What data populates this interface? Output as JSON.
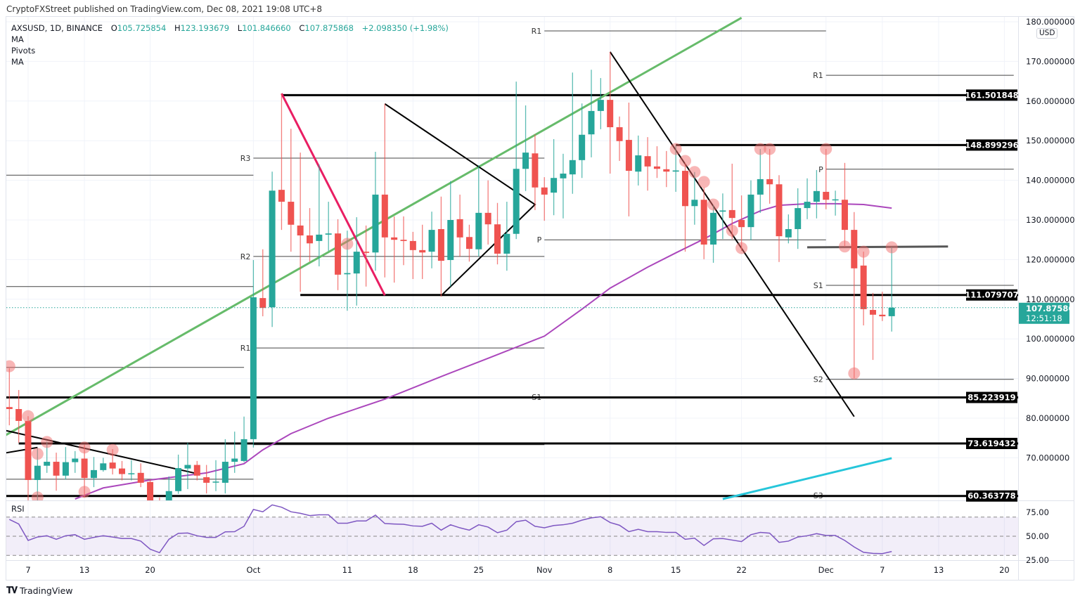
{
  "header": {
    "published": "CryptoFXStreet published on TradingView.com, Dec 08, 2021 19:08 UTC+8"
  },
  "legend": {
    "symbol": "AXSUSD, 1D, BINANCE",
    "open_label": "O",
    "open": "105.725854",
    "high_label": "H",
    "high": "123.193679",
    "low_label": "L",
    "low": "101.846660",
    "close_label": "C",
    "close": "107.875868",
    "change": "+2.098350 (+1.98%)",
    "indicators": [
      "MA",
      "Pivots",
      "MA"
    ]
  },
  "price_axis": {
    "currency": "USD",
    "ticks": [
      "180.000000",
      "170.000000",
      "160.000000",
      "150.000000",
      "140.000000",
      "130.000000",
      "120.000000",
      "110.000000",
      "100.000000",
      "90.000000",
      "80.000000",
      "70.000000"
    ]
  },
  "current_price": {
    "price": "107.875868",
    "countdown": "12:51:18"
  },
  "rsi": {
    "label": "RSI",
    "ticks": [
      "75.00",
      "50.00",
      "25.00"
    ]
  },
  "footer": {
    "brand": "TradingView",
    "logo": "17"
  },
  "colors": {
    "up": "#26a69a",
    "down": "#ef5350",
    "ma50": "#ab47bc",
    "ma200": "#26c6da",
    "trend_up": "#66bb6a",
    "trend_down": "#e91e63",
    "rsi": "#7e57c2"
  },
  "chart_data": {
    "type": "candlestick",
    "title": "",
    "ylim": [
      60,
      180
    ],
    "grid": true,
    "x_ticks": [
      {
        "label": "7",
        "date": "2021-09-07"
      },
      {
        "label": "13",
        "date": "2021-09-13"
      },
      {
        "label": "20",
        "date": "2021-09-20"
      },
      {
        "label": "Oct",
        "date": "2021-10-01"
      },
      {
        "label": "11",
        "date": "2021-10-11"
      },
      {
        "label": "18",
        "date": "2021-10-18"
      },
      {
        "label": "25",
        "date": "2021-10-25"
      },
      {
        "label": "Nov",
        "date": "2021-11-01"
      },
      {
        "label": "8",
        "date": "2021-11-08"
      },
      {
        "label": "15",
        "date": "2021-11-15"
      },
      {
        "label": "22",
        "date": "2021-11-22"
      },
      {
        "label": "Dec",
        "date": "2021-12-01"
      },
      {
        "label": "7",
        "date": "2021-12-07"
      },
      {
        "label": "13",
        "date": "2021-12-13"
      },
      {
        "label": "20",
        "date": "2021-12-20"
      }
    ],
    "candles_columns": [
      "date",
      "open",
      "high",
      "low",
      "close"
    ],
    "candles": [
      [
        "2021-09-05",
        82.8,
        92.6,
        78.2,
        82.3
      ],
      [
        "2021-09-06",
        82.3,
        87.1,
        73.8,
        79.3
      ],
      [
        "2021-09-07",
        79.3,
        80.5,
        58,
        64.4
      ],
      [
        "2021-09-08",
        64.4,
        72.4,
        59,
        68.0
      ],
      [
        "2021-09-09",
        68.0,
        74.1,
        66.2,
        69.0
      ],
      [
        "2021-09-10",
        69.0,
        71.3,
        61.7,
        65.5
      ],
      [
        "2021-09-11",
        65.5,
        72.7,
        64.5,
        68.9
      ],
      [
        "2021-09-12",
        68.9,
        71.7,
        66.2,
        69.8
      ],
      [
        "2021-09-13",
        69.8,
        73.3,
        60,
        64.9
      ],
      [
        "2021-09-14",
        64.9,
        70.2,
        62.6,
        66.9
      ],
      [
        "2021-09-15",
        66.9,
        70.0,
        66.5,
        68.6
      ],
      [
        "2021-09-16",
        68.8,
        72.2,
        65.8,
        67.3
      ],
      [
        "2021-09-17",
        67.3,
        69.2,
        64.3,
        65.9
      ],
      [
        "2021-09-18",
        65.9,
        69.4,
        64.3,
        66.1
      ],
      [
        "2021-09-19",
        66.2,
        68.6,
        62.6,
        63.7
      ],
      [
        "2021-09-20",
        63.9,
        64.5,
        56,
        58.0
      ],
      [
        "2021-09-21",
        58,
        60,
        52,
        55
      ],
      [
        "2021-09-22",
        56,
        65.3,
        54,
        61.6
      ],
      [
        "2021-09-23",
        61.6,
        70.8,
        60.9,
        67.4
      ],
      [
        "2021-09-24",
        67.3,
        73.8,
        62.1,
        68.2
      ],
      [
        "2021-09-25",
        68.2,
        69.2,
        64.3,
        65.5
      ],
      [
        "2021-09-26",
        65.1,
        68.2,
        61,
        63.7
      ],
      [
        "2021-09-27",
        63.8,
        69.4,
        61.6,
        64.0
      ],
      [
        "2021-09-28",
        63.7,
        74.7,
        61.0,
        69.0
      ],
      [
        "2021-09-29",
        69.0,
        76.6,
        66.2,
        69.8
      ],
      [
        "2021-09-30",
        69.2,
        80.4,
        68.9,
        74.7
      ],
      [
        "2021-10-01",
        74.7,
        119.9,
        72.6,
        110.5
      ],
      [
        "2021-10-02",
        110.3,
        122.6,
        105.7,
        107.8
      ],
      [
        "2021-10-03",
        108.0,
        142.2,
        103.0,
        137.4
      ],
      [
        "2021-10-04",
        137.6,
        161.9,
        127.5,
        134.6
      ],
      [
        "2021-10-05",
        134.6,
        153.0,
        122.0,
        128.8
      ],
      [
        "2021-10-06",
        128.6,
        147.0,
        111.9,
        126.1
      ],
      [
        "2021-10-07",
        126.1,
        133.0,
        119.5,
        124.1
      ],
      [
        "2021-10-08",
        124.7,
        144.0,
        118.3,
        126.3
      ],
      [
        "2021-10-09",
        126.3,
        134.6,
        122.2,
        126.6
      ],
      [
        "2021-10-10",
        126.6,
        130.2,
        112.3,
        116.2
      ],
      [
        "2021-10-11",
        116.3,
        127.3,
        107.1,
        116.6
      ],
      [
        "2021-10-12",
        116.5,
        130.7,
        108.4,
        122.0
      ],
      [
        "2021-10-13",
        122.0,
        128.6,
        113.2,
        121.7
      ],
      [
        "2021-10-14",
        121.8,
        147.2,
        117.2,
        136.4
      ],
      [
        "2021-10-15",
        136.4,
        159.3,
        115.5,
        125.6
      ],
      [
        "2021-10-16",
        125.6,
        130.9,
        114.2,
        125.0
      ],
      [
        "2021-10-17",
        125.0,
        130.9,
        118.6,
        124.7
      ],
      [
        "2021-10-18",
        124.7,
        127.0,
        115.1,
        122.4
      ],
      [
        "2021-10-19",
        122.4,
        128.8,
        115.1,
        121.8
      ],
      [
        "2021-10-20",
        122.0,
        132.1,
        117.8,
        127.5
      ],
      [
        "2021-10-21",
        127.7,
        135.9,
        110.7,
        119.7
      ],
      [
        "2021-10-22",
        119.9,
        139.8,
        113.2,
        130.0
      ],
      [
        "2021-10-23",
        130.2,
        136.4,
        120.8,
        125.6
      ],
      [
        "2021-10-24",
        125.7,
        128.8,
        119.5,
        122.7
      ],
      [
        "2021-10-25",
        122.6,
        143.8,
        120.8,
        131.8
      ],
      [
        "2021-10-26",
        131.8,
        140.0,
        123.8,
        128.9
      ],
      [
        "2021-10-27",
        128.9,
        134.3,
        118.8,
        121.5
      ],
      [
        "2021-10-28",
        121.5,
        134.6,
        117.2,
        126.5
      ],
      [
        "2021-10-29",
        126.5,
        164.9,
        125.2,
        142.9
      ],
      [
        "2021-10-30",
        142.9,
        158.9,
        137.3,
        147.0
      ],
      [
        "2021-10-31",
        146.8,
        151.6,
        132.5,
        138.2
      ],
      [
        "2021-11-01",
        138.2,
        140.8,
        129.8,
        136.4
      ],
      [
        "2021-11-02",
        136.9,
        150.4,
        131.2,
        140.6
      ],
      [
        "2021-11-03",
        140.5,
        146.7,
        130.4,
        141.7
      ],
      [
        "2021-11-04",
        141.5,
        167.2,
        136.6,
        145.1
      ],
      [
        "2021-11-05",
        145.1,
        159.4,
        140.6,
        151.5
      ],
      [
        "2021-11-06",
        151.6,
        167.9,
        145.8,
        157.5
      ],
      [
        "2021-11-07",
        157.5,
        165.8,
        152.9,
        160.3
      ],
      [
        "2021-11-08",
        160.3,
        172.4,
        141.7,
        153.4
      ],
      [
        "2021-11-09",
        153.4,
        156.1,
        144.9,
        149.9
      ],
      [
        "2021-11-10",
        150.2,
        159.6,
        130.9,
        142.4
      ],
      [
        "2021-11-11",
        142.2,
        151.3,
        138.7,
        146.3
      ],
      [
        "2021-11-12",
        146.1,
        150.9,
        137.4,
        143.5
      ],
      [
        "2021-11-13",
        143.5,
        148.6,
        140.6,
        142.9
      ],
      [
        "2021-11-14",
        142.8,
        147.4,
        138.3,
        142.2
      ],
      [
        "2021-11-15",
        142.2,
        148.8,
        137.1,
        142.5
      ],
      [
        "2021-11-16",
        142.4,
        144.4,
        122.0,
        133.5
      ],
      [
        "2021-11-17",
        133.5,
        142.1,
        128.8,
        135.1
      ],
      [
        "2021-11-18",
        135.1,
        138.2,
        120.1,
        123.8
      ],
      [
        "2021-11-19",
        123.8,
        133.7,
        119.2,
        131.8
      ],
      [
        "2021-11-20",
        132.1,
        136.7,
        125.2,
        132.4
      ],
      [
        "2021-11-21",
        132.5,
        144.2,
        125.2,
        130.5
      ],
      [
        "2021-11-22",
        130.0,
        136.2,
        122.2,
        128.2
      ],
      [
        "2021-11-23",
        128.2,
        140.0,
        124.9,
        136.4
      ],
      [
        "2021-11-24",
        136.4,
        147.9,
        131.8,
        140.3
      ],
      [
        "2021-11-25",
        140.3,
        147.9,
        134.1,
        139.0
      ],
      [
        "2021-11-26",
        139.0,
        141.3,
        119.4,
        125.9
      ],
      [
        "2021-11-27",
        125.6,
        131.4,
        124.1,
        127.7
      ],
      [
        "2021-11-28",
        127.7,
        138.0,
        122.7,
        133.0
      ],
      [
        "2021-11-29",
        133.0,
        140.5,
        130.2,
        134.6
      ],
      [
        "2021-11-30",
        134.6,
        142.6,
        130.4,
        137.3
      ],
      [
        "2021-12-01",
        137.1,
        147.9,
        132.7,
        135.1
      ],
      [
        "2021-12-02",
        135.0,
        137.4,
        131.1,
        135.2
      ],
      [
        "2021-12-03",
        135.1,
        144.4,
        123.3,
        127.5
      ],
      [
        "2021-12-04",
        127.5,
        132.0,
        90.1,
        117.8
      ],
      [
        "2021-12-05",
        118.5,
        122.0,
        103.4,
        107.5
      ],
      [
        "2021-12-06",
        107.3,
        111.6,
        94.7,
        106.1
      ],
      [
        "2021-12-07",
        106.1,
        111.9,
        104.5,
        105.7
      ],
      [
        "2021-12-08",
        105.725854,
        123.193679,
        101.84666,
        107.875868
      ]
    ],
    "ma_slow": [
      [
        "2021-09-12",
        59.6
      ],
      [
        "2021-09-15",
        62.4
      ],
      [
        "2021-09-20",
        64.4
      ],
      [
        "2021-09-26",
        66.2
      ],
      [
        "2021-09-30",
        68.5
      ],
      [
        "2021-10-02",
        72.0
      ],
      [
        "2021-10-05",
        76.1
      ],
      [
        "2021-10-09",
        80.0
      ],
      [
        "2021-10-15",
        84.8
      ],
      [
        "2021-10-21",
        90.5
      ],
      [
        "2021-10-26",
        95.1
      ],
      [
        "2021-11-01",
        100.7
      ],
      [
        "2021-11-05",
        107.5
      ],
      [
        "2021-11-08",
        112.8
      ],
      [
        "2021-11-12",
        118.1
      ],
      [
        "2021-11-15",
        121.7
      ],
      [
        "2021-11-18",
        125.2
      ],
      [
        "2021-11-21",
        129.1
      ],
      [
        "2021-11-24",
        132.3
      ],
      [
        "2021-11-26",
        133.7
      ],
      [
        "2021-11-29",
        134.1
      ],
      [
        "2021-12-02",
        134.1
      ],
      [
        "2021-12-05",
        133.9
      ],
      [
        "2021-12-08",
        133.0
      ]
    ],
    "ma_long": [
      [
        "2021-11-20",
        59.6
      ],
      [
        "2021-12-08",
        69.9
      ]
    ],
    "levels": [
      {
        "price": "161.501848",
        "from": "2021-10-04"
      },
      {
        "price": "148.899296",
        "from": "2021-11-15"
      },
      {
        "price": "111.079707",
        "from": "2021-10-06"
      },
      {
        "price": "85.223919",
        "from": "2021-09-04"
      },
      {
        "price": "73.619432",
        "from": "2021-09-06"
      },
      {
        "price": "60.363778",
        "from": "2021-09-04"
      }
    ],
    "pivots": [
      {
        "label": "",
        "price": 141.3,
        "from": "2021-09-04",
        "to": "2021-10-01"
      },
      {
        "label": "",
        "price": 113.2,
        "from": "2021-09-04",
        "to": "2021-10-01"
      },
      {
        "label": "",
        "price": 92.8,
        "from": "2021-09-04",
        "to": "2021-09-30"
      },
      {
        "label": "",
        "price": 64.6,
        "from": "2021-09-04",
        "to": "2021-10-01"
      },
      {
        "label": "R3",
        "price": 145.6,
        "from": "2021-10-01",
        "to": "2021-11-01"
      },
      {
        "label": "R2",
        "price": 120.8,
        "from": "2021-10-01",
        "to": "2021-11-01"
      },
      {
        "label": "R1",
        "price": 97.7,
        "from": "2021-10-01",
        "to": "2021-11-01"
      },
      {
        "label": "",
        "price": 73.3,
        "from": "2021-10-01",
        "to": "2021-11-01"
      },
      {
        "label": "R1",
        "price": 177.7,
        "from": "2021-11-01",
        "to": "2021-12-01"
      },
      {
        "label": "P",
        "price": 125.0,
        "from": "2021-11-01",
        "to": "2021-12-01"
      },
      {
        "label": "S1",
        "price": 85.3,
        "from": "2021-11-01",
        "to": "2021-12-01"
      },
      {
        "label": "R1",
        "price": 166.5,
        "from": "2021-12-01",
        "to": "2021-12-21"
      },
      {
        "label": "P",
        "price": 142.8,
        "from": "2021-12-01",
        "to": "2021-12-21"
      },
      {
        "label": "S1",
        "price": 113.5,
        "from": "2021-12-01",
        "to": "2021-12-21"
      },
      {
        "label": "S2",
        "price": 89.8,
        "from": "2021-12-01",
        "to": "2021-12-21"
      },
      {
        "label": "S3",
        "price": 60.5,
        "from": "2021-12-01",
        "to": "2021-12-21"
      }
    ],
    "trendlines": [
      {
        "kind": "up",
        "color": "#66bb6a",
        "points": [
          [
            "2021-09-04",
            74.9
          ],
          [
            "2021-11-22",
            181
          ]
        ]
      },
      {
        "kind": "down",
        "color": "#e91e63",
        "points": [
          [
            "2021-10-04",
            161.9
          ],
          [
            "2021-10-15",
            111.0
          ]
        ]
      },
      {
        "kind": "triangle",
        "color": "#000000",
        "points": [
          [
            "2021-10-15",
            159.3
          ],
          [
            "2021-10-31",
            133.9
          ],
          [
            "2021-10-21",
            110.9
          ]
        ]
      },
      {
        "kind": "down",
        "color": "#000000",
        "points": [
          [
            "2021-11-08",
            172.4
          ],
          [
            "2021-12-04",
            80.4
          ]
        ]
      },
      {
        "kind": "down",
        "color": "#000000",
        "points": [
          [
            "2021-09-04",
            77.2
          ],
          [
            "2021-09-25",
            66.0
          ]
        ]
      },
      {
        "kind": "up",
        "color": "#000000",
        "points": [
          [
            "2021-09-04",
            71.0
          ],
          [
            "2021-09-08",
            72.6
          ]
        ]
      },
      {
        "kind": "flat",
        "color": "#555555",
        "points": [
          [
            "2021-11-29",
            123.1
          ],
          [
            "2021-12-14",
            123.3
          ]
        ]
      }
    ],
    "highlights": [
      [
        "2021-09-05",
        93.1
      ],
      [
        "2021-09-07",
        80.5
      ],
      [
        "2021-09-08",
        71.0
      ],
      [
        "2021-09-09",
        74.0
      ],
      [
        "2021-09-08",
        60.0
      ],
      [
        "2021-09-13",
        72.6
      ],
      [
        "2021-09-13",
        61.4
      ],
      [
        "2021-09-16",
        72.0
      ],
      [
        "2021-10-11",
        124.0
      ],
      [
        "2021-11-15",
        147.9
      ],
      [
        "2021-11-16",
        144.9
      ],
      [
        "2021-11-17",
        142.1
      ],
      [
        "2021-11-18",
        139.6
      ],
      [
        "2021-11-19",
        133.9
      ],
      [
        "2021-11-21",
        127.3
      ],
      [
        "2021-11-22",
        122.9
      ],
      [
        "2021-11-24",
        147.9
      ],
      [
        "2021-11-25",
        147.9
      ],
      [
        "2021-12-01",
        147.9
      ],
      [
        "2021-12-03",
        123.3
      ],
      [
        "2021-12-05",
        122.0
      ],
      [
        "2021-12-04",
        91.3
      ],
      [
        "2021-12-08",
        123.1
      ]
    ],
    "rsi_bands": [
      70,
      50,
      30
    ],
    "rsi_ylim": [
      25,
      75
    ],
    "rsi_values": [
      67.6,
      62.8,
      45.6,
      49.2,
      50.5,
      46.8,
      50.5,
      51.6,
      46.8,
      48.8,
      50.5,
      49.2,
      47.6,
      47.6,
      44.9,
      36.4,
      32.8,
      46.8,
      53,
      53.4,
      50.5,
      48.8,
      48.8,
      54.6,
      54.8,
      60.4,
      78,
      75.6,
      82.8,
      80.4,
      75.6,
      74,
      71.6,
      72.4,
      72.4,
      63.6,
      63.6,
      66,
      66,
      72.1,
      63.3,
      62.8,
      62.5,
      60.8,
      60.4,
      63.6,
      56.4,
      62,
      58.8,
      56.4,
      62,
      59.6,
      53.7,
      56.4,
      65.2,
      66.8,
      60.4,
      58.8,
      61.2,
      62,
      63.6,
      66.8,
      69.2,
      70.4,
      64.4,
      61.5,
      54.8,
      57.2,
      54.8,
      54.8,
      54,
      54,
      46.8,
      48,
      40.4,
      47.3,
      47.6,
      46,
      44.4,
      51.6,
      54,
      53.2,
      43.6,
      44.9,
      49.2,
      50.5,
      52.7,
      50.8,
      50.8,
      45.6,
      38.8,
      33.2,
      32.1,
      31.8,
      34
    ]
  }
}
